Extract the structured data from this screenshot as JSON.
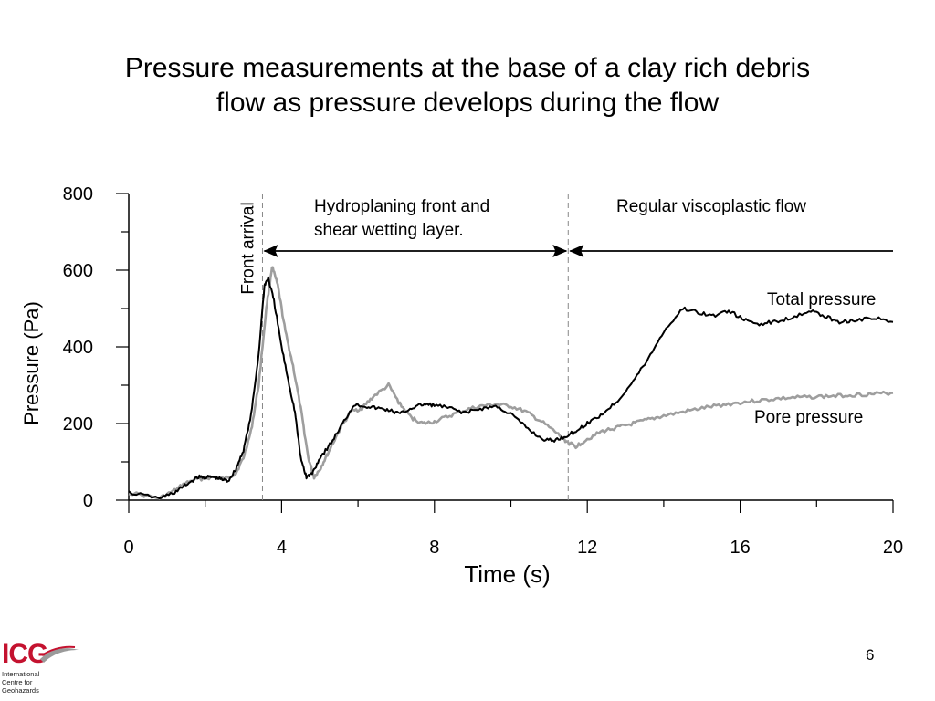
{
  "slide": {
    "title_line1": "Pressure measurements at the base of a clay rich debris",
    "title_line2": "flow as pressure develops during the flow",
    "page_number": "6"
  },
  "logo": {
    "word": "ICG",
    "sub_lines": [
      "International",
      "Centre for",
      "Geohazards"
    ],
    "color": "#c4122f"
  },
  "chart_data": {
    "type": "line",
    "xlabel": "Time (s)",
    "ylabel": "Pressure (Pa)",
    "xlim": [
      0,
      20
    ],
    "ylim": [
      0,
      800
    ],
    "x_ticks": [
      0,
      4,
      8,
      12,
      16,
      20
    ],
    "y_ticks": [
      0,
      200,
      400,
      600,
      800
    ],
    "grid": false,
    "series": [
      {
        "name": "Pore pressure",
        "color": "#9e9e9e",
        "points": [
          [
            0,
            20
          ],
          [
            0.8,
            5
          ],
          [
            1.2,
            25
          ],
          [
            1.5,
            45
          ],
          [
            1.8,
            55
          ],
          [
            2.2,
            60
          ],
          [
            2.5,
            55
          ],
          [
            2.8,
            70
          ],
          [
            3.0,
            110
          ],
          [
            3.2,
            180
          ],
          [
            3.4,
            300
          ],
          [
            3.6,
            500
          ],
          [
            3.75,
            610
          ],
          [
            3.9,
            560
          ],
          [
            4.1,
            440
          ],
          [
            4.3,
            350
          ],
          [
            4.5,
            240
          ],
          [
            4.7,
            110
          ],
          [
            4.85,
            60
          ],
          [
            5.0,
            80
          ],
          [
            5.2,
            120
          ],
          [
            5.5,
            180
          ],
          [
            5.8,
            230
          ],
          [
            6.1,
            240
          ],
          [
            6.4,
            270
          ],
          [
            6.8,
            300
          ],
          [
            7.1,
            250
          ],
          [
            7.4,
            215
          ],
          [
            7.7,
            200
          ],
          [
            8.0,
            205
          ],
          [
            8.4,
            220
          ],
          [
            8.8,
            235
          ],
          [
            9.2,
            245
          ],
          [
            9.6,
            250
          ],
          [
            10.0,
            245
          ],
          [
            10.4,
            230
          ],
          [
            10.8,
            205
          ],
          [
            11.2,
            175
          ],
          [
            11.5,
            150
          ],
          [
            11.7,
            140
          ],
          [
            12.0,
            160
          ],
          [
            12.4,
            180
          ],
          [
            12.8,
            190
          ],
          [
            13.2,
            200
          ],
          [
            13.6,
            210
          ],
          [
            14.0,
            220
          ],
          [
            14.5,
            230
          ],
          [
            15.0,
            240
          ],
          [
            15.5,
            248
          ],
          [
            16.0,
            255
          ],
          [
            16.5,
            260
          ],
          [
            17.0,
            265
          ],
          [
            17.5,
            268
          ],
          [
            18.0,
            270
          ],
          [
            18.5,
            272
          ],
          [
            19.0,
            275
          ],
          [
            19.5,
            277
          ],
          [
            20.0,
            280
          ]
        ]
      },
      {
        "name": "Total pressure",
        "color": "#000000",
        "points": [
          [
            0,
            20
          ],
          [
            0.8,
            5
          ],
          [
            1.2,
            20
          ],
          [
            1.5,
            40
          ],
          [
            1.8,
            60
          ],
          [
            2.0,
            60
          ],
          [
            2.2,
            60
          ],
          [
            2.4,
            55
          ],
          [
            2.6,
            50
          ],
          [
            2.8,
            80
          ],
          [
            3.0,
            130
          ],
          [
            3.2,
            220
          ],
          [
            3.4,
            380
          ],
          [
            3.55,
            560
          ],
          [
            3.65,
            580
          ],
          [
            3.8,
            520
          ],
          [
            4.0,
            400
          ],
          [
            4.2,
            300
          ],
          [
            4.35,
            230
          ],
          [
            4.5,
            110
          ],
          [
            4.65,
            60
          ],
          [
            4.8,
            70
          ],
          [
            5.0,
            110
          ],
          [
            5.3,
            150
          ],
          [
            5.6,
            200
          ],
          [
            5.9,
            250
          ],
          [
            6.2,
            245
          ],
          [
            6.5,
            240
          ],
          [
            6.8,
            235
          ],
          [
            7.1,
            225
          ],
          [
            7.4,
            240
          ],
          [
            7.7,
            250
          ],
          [
            8.0,
            248
          ],
          [
            8.4,
            240
          ],
          [
            8.8,
            228
          ],
          [
            9.2,
            238
          ],
          [
            9.6,
            245
          ],
          [
            10.0,
            225
          ],
          [
            10.4,
            190
          ],
          [
            10.8,
            160
          ],
          [
            11.1,
            155
          ],
          [
            11.4,
            165
          ],
          [
            11.7,
            180
          ],
          [
            12.0,
            200
          ],
          [
            12.4,
            225
          ],
          [
            12.8,
            260
          ],
          [
            13.2,
            310
          ],
          [
            13.6,
            370
          ],
          [
            14.0,
            440
          ],
          [
            14.5,
            500
          ],
          [
            14.9,
            490
          ],
          [
            15.3,
            480
          ],
          [
            15.7,
            495
          ],
          [
            16.1,
            470
          ],
          [
            16.5,
            460
          ],
          [
            16.9,
            465
          ],
          [
            17.3,
            475
          ],
          [
            17.8,
            495
          ],
          [
            18.2,
            480
          ],
          [
            18.6,
            465
          ],
          [
            19.0,
            470
          ],
          [
            19.5,
            475
          ],
          [
            20.0,
            465
          ]
        ]
      }
    ],
    "annotations": {
      "front_arrival": "Front arrival",
      "hydroplaning": [
        "Hydroplaning front and",
        "shear wetting layer."
      ],
      "regular_flow": "Regular viscoplastic flow",
      "total_label": "Total pressure",
      "pore_label": "Pore pressure",
      "front_time": 3.5,
      "transition_time": 11.5,
      "arrow_level": 650
    }
  }
}
